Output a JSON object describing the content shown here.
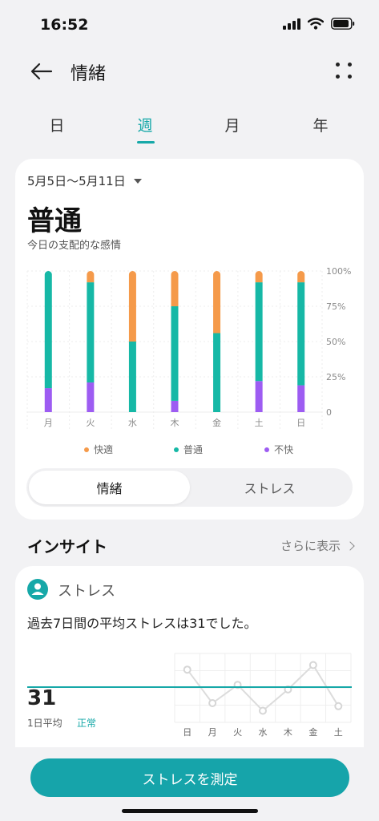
{
  "status": {
    "time": "16:52"
  },
  "header": {
    "title": "情緒"
  },
  "tabs": [
    {
      "label": "日",
      "active": false
    },
    {
      "label": "週",
      "active": true
    },
    {
      "label": "月",
      "active": false
    },
    {
      "label": "年",
      "active": false
    }
  ],
  "summary": {
    "date_range": "5月5日〜5月11日",
    "dominant": "普通",
    "subtitle": "今日の支配的な感情"
  },
  "colors": {
    "accent": "#16a8a8",
    "pleasant": "#f59a4a",
    "neutral": "#16b8a6",
    "unpleasant": "#9d5cf2"
  },
  "chart_data": [
    {
      "type": "bar",
      "stacked": true,
      "categories": [
        "月",
        "火",
        "水",
        "木",
        "金",
        "土",
        "日"
      ],
      "series": [
        {
          "name": "不快",
          "values": [
            17,
            21,
            0,
            8,
            0,
            22,
            19
          ]
        },
        {
          "name": "普通",
          "values": [
            83,
            71,
            50,
            67,
            56,
            70,
            73
          ]
        },
        {
          "name": "快適",
          "values": [
            0,
            8,
            50,
            25,
            44,
            8,
            8
          ]
        }
      ],
      "ylim": [
        0,
        100
      ],
      "yticks": [
        "0",
        "25%",
        "50%",
        "75%",
        "100%"
      ],
      "legend": [
        "快適",
        "普通",
        "不快"
      ],
      "legend_position": "bottom"
    },
    {
      "type": "line",
      "categories": [
        "日",
        "月",
        "火",
        "水",
        "木",
        "金",
        "土"
      ],
      "series": [
        {
          "values": [
            42,
            20,
            32,
            15,
            29,
            45,
            18
          ]
        }
      ],
      "reference_value": 31,
      "grid": true
    }
  ],
  "segment": {
    "options": [
      "情緒",
      "ストレス"
    ],
    "selected": "情緒"
  },
  "insight": {
    "title": "インサイト",
    "more": "さらに表示",
    "card_title": "ストレス",
    "text": "過去7日間の平均ストレスは31でした。",
    "avg_value": "31",
    "avg_label": "1日平均",
    "status": "正常"
  },
  "cta": {
    "label": "ストレスを測定"
  }
}
